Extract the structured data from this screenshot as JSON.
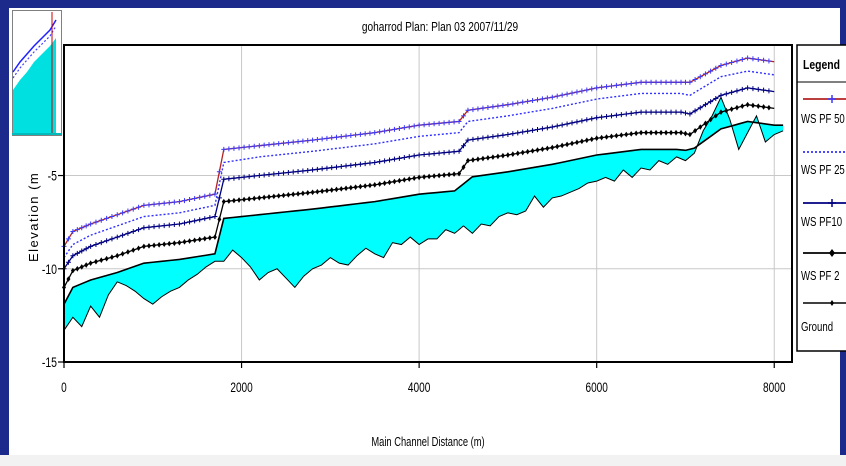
{
  "chart_data": {
    "type": "line",
    "title": "goharrod       Plan: Plan 03    2007/11/29",
    "xlabel": "Main Channel Distance (m)",
    "ylabel": "Elevation (m",
    "xlim": [
      0,
      8200
    ],
    "ylim": [
      -15,
      2
    ],
    "x_ticks": [
      "0",
      "2000",
      "4000",
      "6000",
      "8000"
    ],
    "y_ticks": [
      "-15",
      "-10",
      "-5"
    ],
    "grid": true,
    "legend_title": "Legend",
    "legend_position": "right",
    "series": [
      {
        "name": "WS  PF 50",
        "color": "#b22222",
        "x": [
          0,
          100,
          300,
          600,
          900,
          1300,
          1700,
          1800,
          2200,
          2800,
          3500,
          4000,
          4450,
          4550,
          5000,
          5500,
          6000,
          6500,
          6950,
          7050,
          7400,
          7700,
          8000
        ],
        "y": [
          -8.8,
          -8.0,
          -7.6,
          -7.1,
          -6.6,
          -6.4,
          -6.0,
          -3.6,
          -3.4,
          -3.1,
          -2.7,
          -2.3,
          -2.1,
          -1.5,
          -1.2,
          -0.8,
          -0.3,
          0.0,
          0.0,
          0.0,
          0.9,
          1.3,
          1.1
        ]
      },
      {
        "name": "WS  PF 25",
        "color": "#3030ff",
        "x": [
          0,
          100,
          300,
          600,
          900,
          1300,
          1700,
          1800,
          2200,
          2800,
          3500,
          4000,
          4450,
          4550,
          5000,
          5500,
          6000,
          6500,
          6950,
          7050,
          7400,
          7700,
          8000
        ],
        "y": [
          -9.4,
          -8.7,
          -8.2,
          -7.7,
          -7.2,
          -7.0,
          -6.6,
          -4.3,
          -4.0,
          -3.7,
          -3.3,
          -2.9,
          -2.7,
          -2.1,
          -1.8,
          -1.4,
          -0.9,
          -0.6,
          -0.6,
          -0.7,
          0.3,
          0.6,
          0.4
        ]
      },
      {
        "name": "WS  PF10",
        "color": "#000080",
        "x": [
          0,
          100,
          300,
          600,
          900,
          1300,
          1700,
          1800,
          2200,
          2800,
          3500,
          4000,
          4450,
          4550,
          5000,
          5500,
          6000,
          6500,
          6950,
          7050,
          7400,
          7700,
          8000
        ],
        "y": [
          -10.0,
          -9.3,
          -8.8,
          -8.3,
          -7.8,
          -7.6,
          -7.2,
          -5.2,
          -5.0,
          -4.7,
          -4.3,
          -3.9,
          -3.7,
          -3.1,
          -2.8,
          -2.4,
          -1.9,
          -1.6,
          -1.6,
          -1.7,
          -0.7,
          -0.3,
          -0.5
        ]
      },
      {
        "name": "WS  PF 2",
        "color": "#000000",
        "x": [
          0,
          100,
          300,
          600,
          900,
          1300,
          1700,
          1800,
          2200,
          2800,
          3500,
          4000,
          4450,
          4550,
          5000,
          5500,
          6000,
          6500,
          6950,
          7050,
          7400,
          7700,
          8000
        ],
        "y": [
          -11.0,
          -10.1,
          -9.7,
          -9.3,
          -8.8,
          -8.6,
          -8.3,
          -6.4,
          -6.2,
          -5.9,
          -5.5,
          -5.1,
          -4.9,
          -4.2,
          -3.9,
          -3.5,
          -3.0,
          -2.7,
          -2.7,
          -2.8,
          -1.6,
          -1.2,
          -1.4
        ]
      },
      {
        "name": "Ground",
        "color": "#000000",
        "x": [
          0,
          100,
          200,
          300,
          400,
          500,
          600,
          700,
          800,
          900,
          1000,
          1100,
          1200,
          1300,
          1400,
          1500,
          1600,
          1700,
          1800,
          1900,
          2000,
          2100,
          2200,
          2300,
          2400,
          2500,
          2600,
          2700,
          2800,
          2900,
          3000,
          3100,
          3200,
          3300,
          3400,
          3500,
          3600,
          3700,
          3800,
          3900,
          4000,
          4100,
          4200,
          4300,
          4400,
          4500,
          4600,
          4700,
          4800,
          4900,
          5000,
          5100,
          5200,
          5300,
          5400,
          5500,
          5600,
          5700,
          5800,
          5900,
          6000,
          6100,
          6200,
          6300,
          6400,
          6500,
          6600,
          6700,
          6800,
          6900,
          7000,
          7100,
          7200,
          7300,
          7400,
          7500,
          7600,
          7700,
          7800,
          7900,
          8000,
          8100
        ],
        "y": [
          -13.3,
          -12.6,
          -13.1,
          -12.0,
          -12.6,
          -11.4,
          -10.7,
          -10.9,
          -11.2,
          -11.6,
          -11.9,
          -11.5,
          -11.2,
          -11.0,
          -10.6,
          -10.3,
          -9.9,
          -9.6,
          -9.6,
          -9.0,
          -9.4,
          -9.9,
          -10.6,
          -10.2,
          -10.0,
          -10.5,
          -11.0,
          -10.4,
          -10.0,
          -9.8,
          -9.4,
          -9.7,
          -9.8,
          -9.3,
          -8.9,
          -9.2,
          -9.4,
          -8.6,
          -8.7,
          -8.3,
          -8.7,
          -8.4,
          -8.4,
          -7.9,
          -8.1,
          -7.7,
          -8.1,
          -7.6,
          -7.7,
          -7.2,
          -7.0,
          -7.1,
          -6.9,
          -6.1,
          -6.7,
          -6.2,
          -6.1,
          -5.9,
          -5.7,
          -5.4,
          -5.3,
          -5.1,
          -5.3,
          -4.7,
          -5.1,
          -4.6,
          -4.7,
          -4.2,
          -4.4,
          -4.0,
          -4.2,
          -3.8,
          -2.6,
          -1.8,
          -0.8,
          -2.0,
          -3.6,
          -2.7,
          -1.8,
          -3.2,
          -2.8,
          -2.6
        ]
      }
    ],
    "ground_fill_color": "#00ffff",
    "thumbnail": {
      "ws_top": [
        0.8,
        0.5,
        0.3,
        0.1,
        -0.1
      ],
      "ws_bottom": [
        0.6,
        0.35,
        0.2,
        0.05,
        -0.2
      ]
    }
  }
}
